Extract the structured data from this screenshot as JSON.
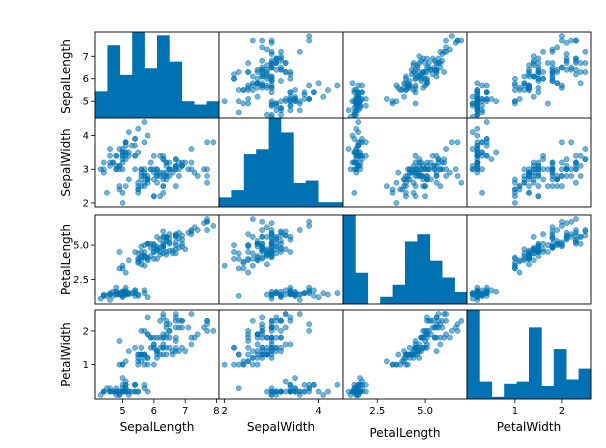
{
  "chart_data": {
    "type": "scatter_matrix",
    "variables": [
      "SepalLength",
      "SepalWidth",
      "PetalLength",
      "PetalWidth"
    ],
    "color": "#0072b2",
    "diagonal": "histogram",
    "grid": false,
    "ranges": {
      "SepalLength": [
        4.3,
        7.9
      ],
      "SepalWidth": [
        2.0,
        4.4
      ],
      "PetalLength": [
        1.0,
        6.9
      ],
      "PetalWidth": [
        0.1,
        2.5
      ]
    },
    "row_ticks": {
      "SepalLength": [
        {
          "v": 5,
          "label": "5"
        },
        {
          "v": 6,
          "label": "6"
        },
        {
          "v": 7,
          "label": "7"
        }
      ],
      "SepalWidth": [
        {
          "v": 2,
          "label": "2"
        },
        {
          "v": 3,
          "label": "3"
        },
        {
          "v": 4,
          "label": "4"
        }
      ],
      "PetalLength": [
        {
          "v": 2.5,
          "label": "2.5"
        },
        {
          "v": 5.0,
          "label": "5.0"
        }
      ],
      "PetalWidth": [
        {
          "v": 1,
          "label": "1"
        },
        {
          "v": 2,
          "label": "2"
        }
      ]
    },
    "col_ticks": {
      "SepalLength": [
        {
          "v": 5,
          "label": "5"
        },
        {
          "v": 6,
          "label": "6"
        },
        {
          "v": 7,
          "label": "7"
        },
        {
          "v": 8,
          "label": "8"
        }
      ],
      "SepalWidth": [
        {
          "v": 2,
          "label": "2"
        },
        {
          "v": 4,
          "label": "4"
        }
      ],
      "PetalLength": [
        {
          "v": 2.5,
          "label": "2.5"
        },
        {
          "v": 5.0,
          "label": "5.0"
        }
      ],
      "PetalWidth": [
        {
          "v": 1,
          "label": "1"
        },
        {
          "v": 2,
          "label": "2"
        }
      ]
    },
    "histograms": {
      "SepalLength": [
        9,
        23,
        14,
        27,
        16,
        26,
        18,
        6,
        5,
        6
      ],
      "SepalWidth": [
        4,
        7,
        22,
        24,
        37,
        31,
        10,
        11,
        2,
        2
      ],
      "PetalLength": [
        37,
        13,
        0,
        3,
        8,
        26,
        29,
        18,
        11,
        5
      ],
      "PetalWidth": [
        41,
        8,
        1,
        7,
        8,
        33,
        6,
        23,
        9,
        14
      ]
    },
    "data": [
      [
        5.1,
        3.5,
        1.4,
        0.2
      ],
      [
        4.9,
        3.0,
        1.4,
        0.2
      ],
      [
        4.7,
        3.2,
        1.3,
        0.2
      ],
      [
        4.6,
        3.1,
        1.5,
        0.2
      ],
      [
        5.0,
        3.6,
        1.4,
        0.2
      ],
      [
        5.4,
        3.9,
        1.7,
        0.4
      ],
      [
        4.6,
        3.4,
        1.4,
        0.3
      ],
      [
        5.0,
        3.4,
        1.5,
        0.2
      ],
      [
        4.4,
        2.9,
        1.4,
        0.2
      ],
      [
        4.9,
        3.1,
        1.5,
        0.1
      ],
      [
        5.4,
        3.7,
        1.5,
        0.2
      ],
      [
        4.8,
        3.4,
        1.6,
        0.2
      ],
      [
        4.8,
        3.0,
        1.4,
        0.1
      ],
      [
        4.3,
        3.0,
        1.1,
        0.1
      ],
      [
        5.8,
        4.0,
        1.2,
        0.2
      ],
      [
        5.7,
        4.4,
        1.5,
        0.4
      ],
      [
        5.4,
        3.9,
        1.3,
        0.4
      ],
      [
        5.1,
        3.5,
        1.4,
        0.3
      ],
      [
        5.7,
        3.8,
        1.7,
        0.3
      ],
      [
        5.1,
        3.8,
        1.5,
        0.3
      ],
      [
        5.4,
        3.4,
        1.7,
        0.2
      ],
      [
        5.1,
        3.7,
        1.5,
        0.4
      ],
      [
        4.6,
        3.6,
        1.0,
        0.2
      ],
      [
        5.1,
        3.3,
        1.7,
        0.5
      ],
      [
        4.8,
        3.4,
        1.9,
        0.2
      ],
      [
        5.0,
        3.0,
        1.6,
        0.2
      ],
      [
        5.0,
        3.4,
        1.6,
        0.4
      ],
      [
        5.2,
        3.5,
        1.5,
        0.2
      ],
      [
        5.2,
        3.4,
        1.4,
        0.2
      ],
      [
        4.7,
        3.2,
        1.6,
        0.2
      ],
      [
        4.8,
        3.1,
        1.6,
        0.2
      ],
      [
        5.4,
        3.4,
        1.5,
        0.4
      ],
      [
        5.2,
        4.1,
        1.5,
        0.1
      ],
      [
        5.5,
        4.2,
        1.4,
        0.2
      ],
      [
        4.9,
        3.1,
        1.5,
        0.2
      ],
      [
        5.0,
        3.2,
        1.2,
        0.2
      ],
      [
        5.5,
        3.5,
        1.3,
        0.2
      ],
      [
        4.9,
        3.6,
        1.4,
        0.1
      ],
      [
        4.4,
        3.0,
        1.3,
        0.2
      ],
      [
        5.1,
        3.4,
        1.5,
        0.2
      ],
      [
        5.0,
        3.5,
        1.3,
        0.3
      ],
      [
        4.5,
        2.3,
        1.3,
        0.3
      ],
      [
        4.4,
        3.2,
        1.3,
        0.2
      ],
      [
        5.0,
        3.5,
        1.6,
        0.6
      ],
      [
        5.1,
        3.8,
        1.9,
        0.4
      ],
      [
        4.8,
        3.0,
        1.4,
        0.3
      ],
      [
        5.1,
        3.8,
        1.6,
        0.2
      ],
      [
        4.6,
        3.2,
        1.4,
        0.2
      ],
      [
        5.3,
        3.7,
        1.5,
        0.2
      ],
      [
        5.0,
        3.3,
        1.4,
        0.2
      ],
      [
        7.0,
        3.2,
        4.7,
        1.4
      ],
      [
        6.4,
        3.2,
        4.5,
        1.5
      ],
      [
        6.9,
        3.1,
        4.9,
        1.5
      ],
      [
        5.5,
        2.3,
        4.0,
        1.3
      ],
      [
        6.5,
        2.8,
        4.6,
        1.5
      ],
      [
        5.7,
        2.8,
        4.5,
        1.3
      ],
      [
        6.3,
        3.3,
        4.7,
        1.6
      ],
      [
        4.9,
        2.4,
        3.3,
        1.0
      ],
      [
        6.6,
        2.9,
        4.6,
        1.3
      ],
      [
        5.2,
        2.7,
        3.9,
        1.4
      ],
      [
        5.0,
        2.0,
        3.5,
        1.0
      ],
      [
        5.9,
        3.0,
        4.2,
        1.5
      ],
      [
        6.0,
        2.2,
        4.0,
        1.0
      ],
      [
        6.1,
        2.9,
        4.7,
        1.4
      ],
      [
        5.6,
        2.9,
        3.6,
        1.3
      ],
      [
        6.7,
        3.1,
        4.4,
        1.4
      ],
      [
        5.6,
        3.0,
        4.5,
        1.5
      ],
      [
        5.8,
        2.7,
        4.1,
        1.0
      ],
      [
        6.2,
        2.2,
        4.5,
        1.5
      ],
      [
        5.6,
        2.5,
        3.9,
        1.1
      ],
      [
        5.9,
        3.2,
        4.8,
        1.8
      ],
      [
        6.1,
        2.8,
        4.0,
        1.3
      ],
      [
        6.3,
        2.5,
        4.9,
        1.5
      ],
      [
        6.1,
        2.8,
        4.7,
        1.2
      ],
      [
        6.4,
        2.9,
        4.3,
        1.3
      ],
      [
        6.6,
        3.0,
        4.4,
        1.4
      ],
      [
        6.8,
        2.8,
        4.8,
        1.4
      ],
      [
        6.7,
        3.0,
        5.0,
        1.7
      ],
      [
        6.0,
        2.9,
        4.5,
        1.5
      ],
      [
        5.7,
        2.6,
        3.5,
        1.0
      ],
      [
        5.5,
        2.4,
        3.8,
        1.1
      ],
      [
        5.5,
        2.4,
        3.7,
        1.0
      ],
      [
        5.8,
        2.7,
        3.9,
        1.2
      ],
      [
        6.0,
        2.7,
        5.1,
        1.6
      ],
      [
        5.4,
        3.0,
        4.5,
        1.5
      ],
      [
        6.0,
        3.4,
        4.5,
        1.6
      ],
      [
        6.7,
        3.1,
        4.7,
        1.5
      ],
      [
        6.3,
        2.3,
        4.4,
        1.3
      ],
      [
        5.6,
        3.0,
        4.1,
        1.3
      ],
      [
        5.5,
        2.5,
        4.0,
        1.3
      ],
      [
        5.5,
        2.6,
        4.4,
        1.2
      ],
      [
        6.1,
        3.0,
        4.6,
        1.4
      ],
      [
        5.8,
        2.6,
        4.0,
        1.2
      ],
      [
        5.0,
        2.3,
        3.3,
        1.0
      ],
      [
        5.6,
        2.7,
        4.2,
        1.3
      ],
      [
        5.7,
        3.0,
        4.2,
        1.2
      ],
      [
        5.7,
        2.9,
        4.2,
        1.3
      ],
      [
        6.2,
        2.9,
        4.3,
        1.3
      ],
      [
        5.1,
        2.5,
        3.0,
        1.1
      ],
      [
        5.7,
        2.8,
        4.1,
        1.3
      ],
      [
        6.3,
        3.3,
        6.0,
        2.5
      ],
      [
        5.8,
        2.7,
        5.1,
        1.9
      ],
      [
        7.1,
        3.0,
        5.9,
        2.1
      ],
      [
        6.3,
        2.9,
        5.6,
        1.8
      ],
      [
        6.5,
        3.0,
        5.8,
        2.2
      ],
      [
        7.6,
        3.0,
        6.6,
        2.1
      ],
      [
        4.9,
        2.5,
        4.5,
        1.7
      ],
      [
        7.3,
        2.9,
        6.3,
        1.8
      ],
      [
        6.7,
        2.5,
        5.8,
        1.8
      ],
      [
        7.2,
        3.6,
        6.1,
        2.5
      ],
      [
        6.5,
        3.2,
        5.1,
        2.0
      ],
      [
        6.4,
        2.7,
        5.3,
        1.9
      ],
      [
        6.8,
        3.0,
        5.5,
        2.1
      ],
      [
        5.7,
        2.5,
        5.0,
        2.0
      ],
      [
        5.8,
        2.8,
        5.1,
        2.4
      ],
      [
        6.4,
        3.2,
        5.3,
        2.3
      ],
      [
        6.5,
        3.0,
        5.5,
        1.8
      ],
      [
        7.7,
        3.8,
        6.7,
        2.2
      ],
      [
        7.7,
        2.6,
        6.9,
        2.3
      ],
      [
        6.0,
        2.2,
        5.0,
        1.5
      ],
      [
        6.9,
        3.2,
        5.7,
        2.3
      ],
      [
        5.6,
        2.8,
        4.9,
        2.0
      ],
      [
        7.7,
        2.8,
        6.7,
        2.0
      ],
      [
        6.3,
        2.7,
        4.9,
        1.8
      ],
      [
        6.7,
        3.3,
        5.7,
        2.1
      ],
      [
        7.2,
        3.2,
        6.0,
        1.8
      ],
      [
        6.2,
        2.8,
        4.8,
        1.8
      ],
      [
        6.1,
        3.0,
        4.9,
        1.8
      ],
      [
        6.4,
        2.8,
        5.6,
        2.1
      ],
      [
        7.2,
        3.0,
        5.8,
        1.6
      ],
      [
        7.4,
        2.8,
        6.1,
        1.9
      ],
      [
        7.9,
        3.8,
        6.4,
        2.0
      ],
      [
        6.4,
        2.8,
        5.6,
        2.2
      ],
      [
        6.3,
        2.8,
        5.1,
        1.5
      ],
      [
        6.1,
        2.6,
        5.6,
        1.4
      ],
      [
        7.7,
        3.0,
        6.1,
        2.3
      ],
      [
        6.3,
        3.4,
        5.6,
        2.4
      ],
      [
        6.4,
        3.1,
        5.5,
        1.8
      ],
      [
        6.0,
        3.0,
        4.8,
        1.8
      ],
      [
        6.9,
        3.1,
        5.4,
        2.1
      ],
      [
        6.7,
        3.1,
        5.6,
        2.4
      ],
      [
        6.9,
        3.1,
        5.1,
        2.3
      ],
      [
        5.8,
        2.7,
        5.1,
        1.9
      ],
      [
        6.8,
        3.2,
        5.9,
        2.3
      ],
      [
        6.7,
        3.3,
        5.7,
        2.5
      ],
      [
        6.7,
        3.0,
        5.2,
        2.3
      ],
      [
        6.3,
        2.5,
        5.0,
        1.9
      ],
      [
        6.5,
        3.0,
        5.2,
        2.0
      ],
      [
        6.2,
        3.4,
        5.4,
        2.3
      ],
      [
        5.9,
        3.0,
        5.1,
        1.8
      ]
    ]
  }
}
